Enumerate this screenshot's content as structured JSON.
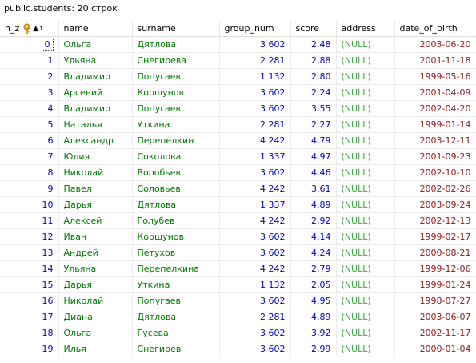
{
  "title": "public.students: 20 строк",
  "colors": {
    "number": "#0000cc",
    "text": "#007a00",
    "null": "#3aa83a",
    "date": "#8b1a1a",
    "key_icon": "#e8a317"
  },
  "columns": [
    "n_z",
    "name",
    "surname",
    "group_num",
    "score",
    "address",
    "date_of_birth"
  ],
  "sort_indicator": "▲",
  "sort_order": "1",
  "rows": [
    [
      "0",
      "Ольга",
      "Дятлова",
      "3 602",
      "2,48",
      "(NULL)",
      "2003-06-20"
    ],
    [
      "1",
      "Ульяна",
      "Снегирева",
      "2 281",
      "2,88",
      "(NULL)",
      "2001-11-18"
    ],
    [
      "2",
      "Владимир",
      "Попугаев",
      "1 132",
      "2,80",
      "(NULL)",
      "1999-05-16"
    ],
    [
      "3",
      "Арсений",
      "Коршунов",
      "3 602",
      "2,24",
      "(NULL)",
      "2001-04-09"
    ],
    [
      "4",
      "Владимир",
      "Попугаев",
      "3 602",
      "3,55",
      "(NULL)",
      "2002-04-20"
    ],
    [
      "5",
      "Наталья",
      "Уткина",
      "2 281",
      "2,27",
      "(NULL)",
      "1999-01-14"
    ],
    [
      "6",
      "Александр",
      "Перепелкин",
      "4 242",
      "4,79",
      "(NULL)",
      "2003-12-11"
    ],
    [
      "7",
      "Юлия",
      "Соколова",
      "1 337",
      "4,97",
      "(NULL)",
      "2001-09-23"
    ],
    [
      "8",
      "Николай",
      "Воробьев",
      "3 602",
      "4,46",
      "(NULL)",
      "2002-10-10"
    ],
    [
      "9",
      "Павел",
      "Соловьев",
      "4 242",
      "3,61",
      "(NULL)",
      "2002-02-26"
    ],
    [
      "10",
      "Дарья",
      "Дятлова",
      "1 337",
      "4,89",
      "(NULL)",
      "2003-09-24"
    ],
    [
      "11",
      "Алексей",
      "Голубев",
      "4 242",
      "2,92",
      "(NULL)",
      "2002-12-13"
    ],
    [
      "12",
      "Иван",
      "Коршунов",
      "3 602",
      "4,14",
      "(NULL)",
      "1999-02-17"
    ],
    [
      "13",
      "Андрей",
      "Петухов",
      "3 602",
      "4,24",
      "(NULL)",
      "2000-08-21"
    ],
    [
      "14",
      "Ульяна",
      "Перепелкина",
      "4 242",
      "2,79",
      "(NULL)",
      "1999-12-06"
    ],
    [
      "15",
      "Дарья",
      "Уткина",
      "1 132",
      "2,05",
      "(NULL)",
      "1999-01-24"
    ],
    [
      "16",
      "Николай",
      "Попугаев",
      "3 602",
      "4,95",
      "(NULL)",
      "1998-07-27"
    ],
    [
      "17",
      "Диана",
      "Дятлова",
      "2 281",
      "4,89",
      "(NULL)",
      "2003-06-07"
    ],
    [
      "18",
      "Ольга",
      "Гусева",
      "3 602",
      "3,92",
      "(NULL)",
      "2002-11-17"
    ],
    [
      "19",
      "Илья",
      "Снегирев",
      "3 602",
      "2,99",
      "(NULL)",
      "2000-01-04"
    ]
  ]
}
